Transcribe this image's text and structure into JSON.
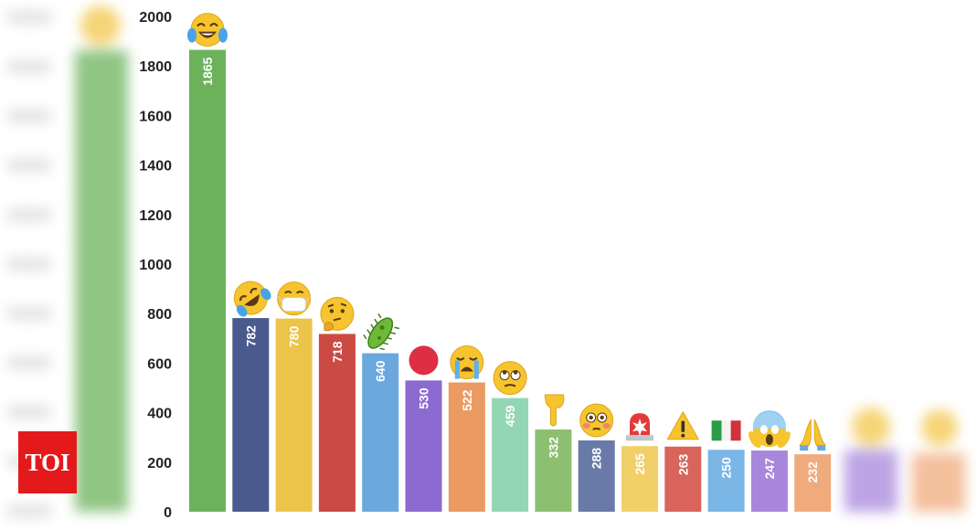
{
  "brand": {
    "logo_text": "TOI",
    "logo_color": "#e4191b"
  },
  "chart_data": {
    "type": "bar",
    "title": "",
    "xlabel": "",
    "ylabel": "",
    "ylim": [
      0,
      2000
    ],
    "yticks": [
      0,
      200,
      400,
      600,
      800,
      1000,
      1200,
      1400,
      1600,
      1800,
      2000
    ],
    "grid": false,
    "legend": "none",
    "value_labels": "inside-bar-top-rotated",
    "categories": [
      "face-with-tears-of-joy-icon",
      "rolling-on-floor-laughing-icon",
      "face-with-medical-mask-icon",
      "thinking-face-icon",
      "microbe-icon",
      "red-circle-icon",
      "loudly-crying-face-icon",
      "face-with-rolling-eyes-icon",
      "backhand-index-pointing-down-icon",
      "flushed-face-icon",
      "police-car-light-icon",
      "warning-icon",
      "italy-flag-icon",
      "face-screaming-in-fear-icon",
      "folded-hands-icon"
    ],
    "values": [
      1865,
      782,
      780,
      718,
      640,
      530,
      522,
      459,
      332,
      288,
      265,
      263,
      250,
      247,
      232
    ],
    "colors": [
      "#6bb25a",
      "#4a5a8d",
      "#ecc44a",
      "#cc4a44",
      "#6aa8de",
      "#8d6ad0",
      "#eb9a62",
      "#93d6b4",
      "#8cc070",
      "#6a7aa8",
      "#f1d06a",
      "#d8645c",
      "#7ab6e6",
      "#a886dc",
      "#f0ab7c"
    ]
  }
}
